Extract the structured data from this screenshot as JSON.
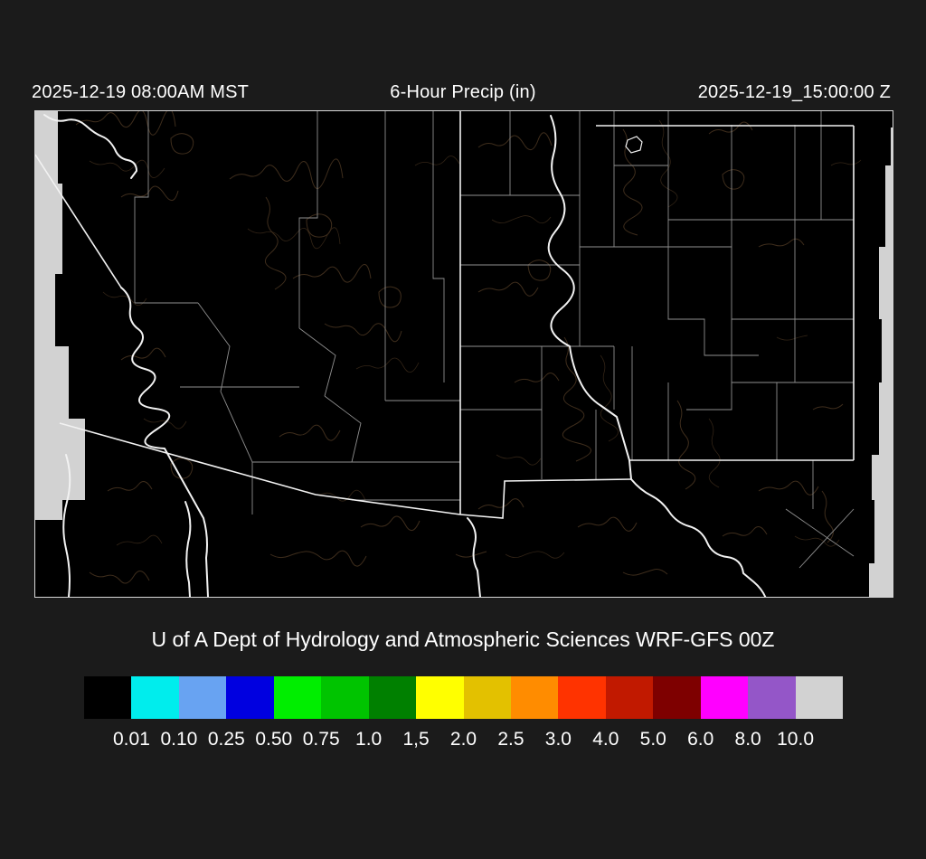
{
  "page": {
    "background": "#1B1B1B",
    "text_color": "#FFFFFF"
  },
  "header": {
    "valid_local": "2025-12-19 08:00AM MST",
    "title": "6-Hour Precip (in)",
    "valid_utc": "2025-12-19_15:00:00 Z"
  },
  "footer": {
    "credit": "U of A Dept of Hydrology and Atmospheric Sciences WRF-GFS 00Z"
  },
  "colorbar": {
    "units": "in",
    "swatches": [
      "#000000",
      "#00EDED",
      "#68A3F2",
      "#0000E0",
      "#00EE00",
      "#00C400",
      "#008000",
      "#FFFF00",
      "#E3C100",
      "#FF8C00",
      "#FF3300",
      "#C11900",
      "#7E0000",
      "#FF00FF",
      "#9456C8",
      "#D2D2D2"
    ],
    "labels": [
      "0.01",
      "0.10",
      "0.25",
      "0.50",
      "0.75",
      "1.0",
      "1,5",
      "2.0",
      "2.5",
      "3.0",
      "4.0",
      "5.0",
      "6.0",
      "8.0",
      "10.0"
    ]
  },
  "map": {
    "region": "Arizona and New Mexico with county boundaries and terrain contours",
    "precip_shown": "none (field entirely below 0.01 in, map background black)",
    "colors": {
      "background": "#000000",
      "outside_domain": "#D2D2D2",
      "state_border": "#F2F2F2",
      "county_border": "#8F8F8F",
      "terrain_contour": "#3E2D1C",
      "frame": "#D8D8D8"
    }
  }
}
